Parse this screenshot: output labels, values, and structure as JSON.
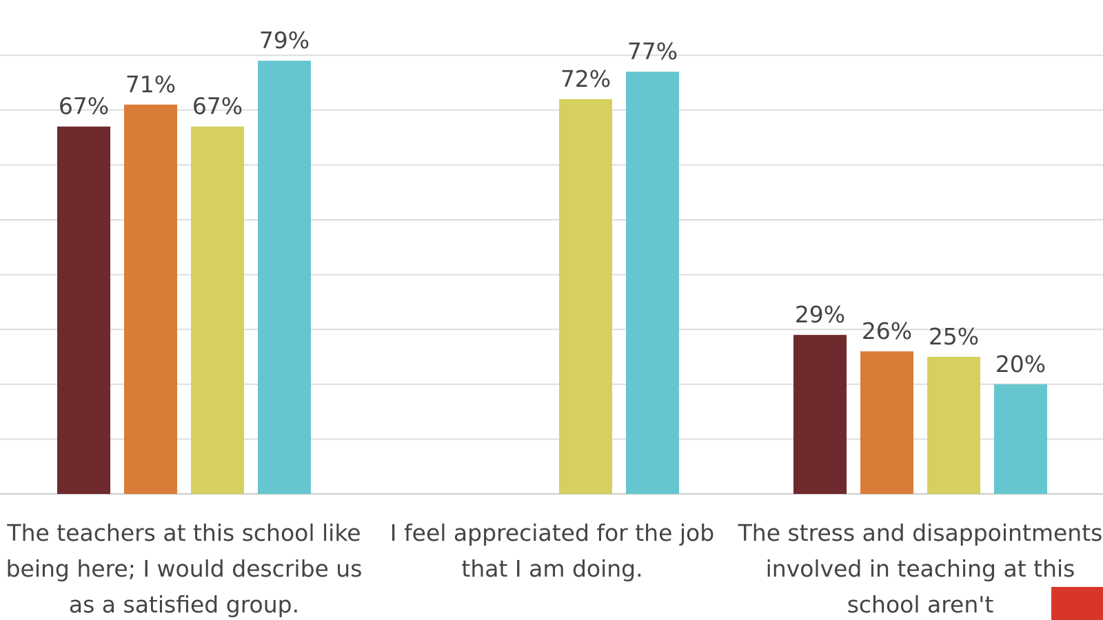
{
  "chart_data": {
    "type": "bar",
    "categories": [
      "The teachers at this school like being here; I would describe us as a satisfied group.",
      "I feel appreciated for the job that I am doing.",
      "The stress and disappointments involved in teaching at this school aren't"
    ],
    "series": [
      {
        "color": "#6e2a2c",
        "values": [
          67,
          null,
          29
        ],
        "value_labels": [
          "67%",
          null,
          "29%"
        ]
      },
      {
        "color": "#d97c38",
        "values": [
          71,
          null,
          26
        ],
        "value_labels": [
          "71%",
          null,
          "26%"
        ]
      },
      {
        "color": "#d6d05e",
        "values": [
          67,
          72,
          25
        ],
        "value_labels": [
          "67%",
          "72%",
          "25%"
        ]
      },
      {
        "color": "#65c6cf",
        "values": [
          79,
          77,
          20
        ],
        "value_labels": [
          "79%",
          "77%",
          "20%"
        ]
      }
    ],
    "ylim": [
      0,
      90
    ],
    "yticks": [
      0,
      10,
      20,
      30,
      40,
      50,
      60,
      70,
      80
    ],
    "grid": true
  }
}
